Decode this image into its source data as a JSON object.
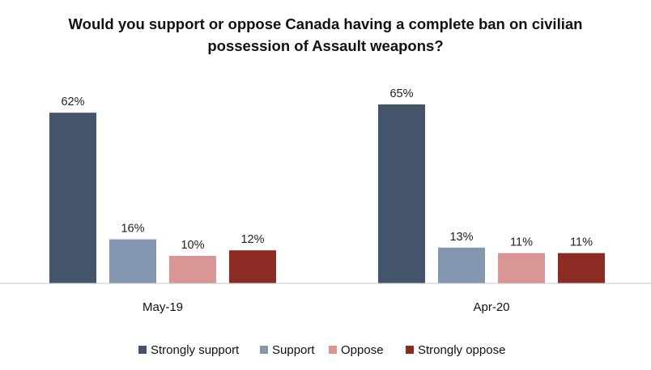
{
  "chart_data": {
    "type": "bar",
    "title_lines": [
      "Would you support or oppose Canada having a complete ban on civilian",
      "possession of Assault weapons?"
    ],
    "categories": [
      "May-19",
      "Apr-20"
    ],
    "series": [
      {
        "name": "Strongly support",
        "color": "#44546a",
        "values": [
          62,
          65
        ],
        "labels": [
          "62%",
          "65%"
        ]
      },
      {
        "name": "Support",
        "color": "#8496b0",
        "values": [
          16,
          13
        ],
        "labels": [
          "16%",
          "13%"
        ]
      },
      {
        "name": "Oppose",
        "color": "#d99694",
        "values": [
          10,
          11
        ],
        "labels": [
          "10%",
          "11%"
        ]
      },
      {
        "name": "Strongly oppose",
        "color": "#8b2b24",
        "values": [
          12,
          11
        ],
        "labels": [
          "12%",
          "11%"
        ]
      }
    ],
    "xlabel": "",
    "ylabel": "",
    "ylim": [
      0,
      65
    ],
    "grid": false,
    "legend_position": "bottom"
  }
}
